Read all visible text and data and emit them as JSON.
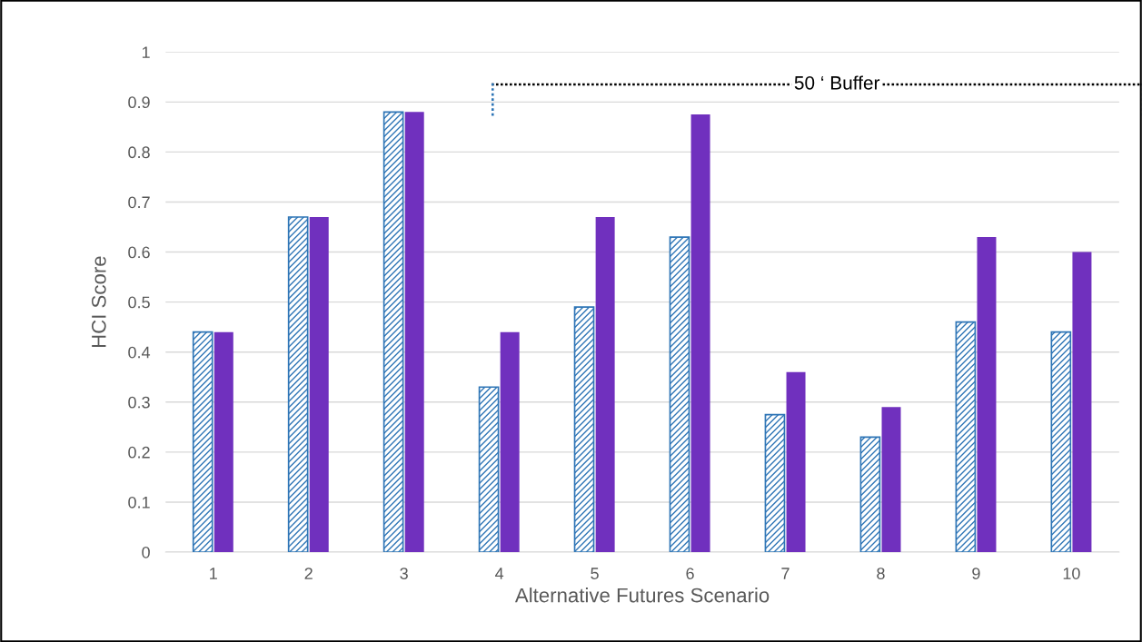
{
  "chart_data": {
    "type": "bar",
    "xlabel": "Alternative Futures Scenario",
    "ylabel": "HCI Score",
    "categories": [
      "1",
      "2",
      "3",
      "4",
      "5",
      "6",
      "7",
      "8",
      "9",
      "10"
    ],
    "series": [
      {
        "color": "#2e75b6",
        "values": [
          0.44,
          0.67,
          0.88,
          0.33,
          0.49,
          0.63,
          0.275,
          0.23,
          0.46,
          0.44
        ]
      },
      {
        "color": "#7030be",
        "values": [
          0.44,
          0.67,
          0.88,
          0.44,
          0.67,
          0.875,
          0.36,
          0.29,
          0.63,
          0.6
        ]
      }
    ],
    "ylim": [
      0,
      1
    ],
    "yticks": [
      0,
      0.1,
      0.2,
      0.3,
      0.4,
      0.5,
      0.6,
      0.7,
      0.8,
      0.9,
      1
    ],
    "grid": "y",
    "annotations": [
      "50 ‘ Buffer"
    ]
  }
}
